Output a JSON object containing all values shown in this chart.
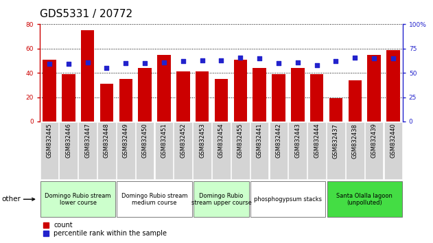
{
  "title": "GDS5331 / 20772",
  "samples": [
    "GSM832445",
    "GSM832446",
    "GSM832447",
    "GSM832448",
    "GSM832449",
    "GSM832450",
    "GSM832451",
    "GSM832452",
    "GSM832453",
    "GSM832454",
    "GSM832455",
    "GSM832441",
    "GSM832442",
    "GSM832443",
    "GSM832444",
    "GSM832437",
    "GSM832438",
    "GSM832439",
    "GSM832440"
  ],
  "counts": [
    51,
    39,
    75,
    31,
    35,
    44,
    55,
    41,
    41,
    35,
    51,
    44,
    39,
    44,
    39,
    19,
    34,
    55,
    59
  ],
  "percentiles": [
    59,
    59,
    61,
    55,
    60,
    60,
    61,
    62,
    63,
    63,
    66,
    65,
    60,
    61,
    58,
    62,
    66,
    65,
    65
  ],
  "bar_color": "#cc0000",
  "dot_color": "#2222cc",
  "left_ylim": [
    0,
    80
  ],
  "right_ylim": [
    0,
    100
  ],
  "left_yticks": [
    0,
    20,
    40,
    60,
    80
  ],
  "right_yticks": [
    0,
    25,
    50,
    75,
    100
  ],
  "right_yticklabels": [
    "0",
    "25",
    "50",
    "75",
    "100%"
  ],
  "groups": [
    {
      "label": "Domingo Rubio stream\nlower course",
      "start": 0,
      "end": 4,
      "color": "#ccffcc"
    },
    {
      "label": "Domingo Rubio stream\nmedium course",
      "start": 4,
      "end": 8,
      "color": "#ffffff"
    },
    {
      "label": "Domingo Rubio\nstream upper course",
      "start": 8,
      "end": 11,
      "color": "#ccffcc"
    },
    {
      "label": "phosphogypsum stacks",
      "start": 11,
      "end": 15,
      "color": "#ffffff"
    },
    {
      "label": "Santa Olalla lagoon\n(unpolluted)",
      "start": 15,
      "end": 19,
      "color": "#44dd44"
    }
  ],
  "other_label": "other",
  "legend_count_label": "count",
  "legend_pct_label": "percentile rank within the sample",
  "title_fontsize": 11,
  "tick_fontsize": 6.5,
  "group_fontsize": 6.0,
  "xtick_fontsize": 6.0
}
